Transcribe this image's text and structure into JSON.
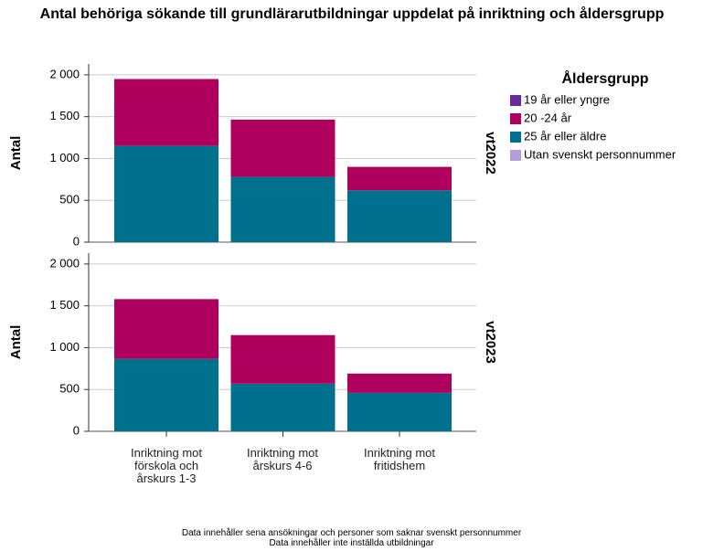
{
  "title": "Antal behöriga sökande till grundlärarutbildningar uppdelat på inriktning och åldersgrupp",
  "categories": [
    "Inriktning mot förskola och årskurs 1-3",
    "Inriktning mot årskurs 4-6",
    "Inriktning mot fritidshem"
  ],
  "legend": {
    "title": "Åldersgrupp",
    "series": [
      {
        "name": "19 år eller yngre",
        "color": "#6a2a9e"
      },
      {
        "name": "20 -24 år",
        "color": "#b0005e"
      },
      {
        "name": "25 år eller äldre",
        "color": "#00708f"
      },
      {
        "name": "Utan svenskt personnummer",
        "color": "#b39ddb"
      }
    ]
  },
  "chart_data": [
    {
      "type": "bar",
      "stacked": true,
      "label": "vt2022",
      "ylabel": "Antal",
      "ylim": [
        0,
        2130
      ],
      "yticks": [
        0,
        500,
        {
          "value": 1000,
          "label": "1 000"
        },
        {
          "value": 1500,
          "label": "1 500"
        },
        {
          "value": 2000,
          "label": "2 000"
        }
      ],
      "grid": true,
      "series": [
        {
          "values": [
            0,
            0,
            0
          ]
        },
        {
          "values": [
            800,
            685,
            280
          ]
        },
        {
          "values": [
            1150,
            780,
            620
          ]
        },
        {
          "values": [
            0,
            0,
            0
          ]
        }
      ]
    },
    {
      "type": "bar",
      "stacked": true,
      "label": "vt2023",
      "ylabel": "Antal",
      "ylim": [
        0,
        2130
      ],
      "yticks": [
        0,
        500,
        {
          "value": 1000,
          "label": "1 000"
        },
        {
          "value": 1500,
          "label": "1 500"
        },
        {
          "value": 2000,
          "label": "2 000"
        }
      ],
      "grid": true,
      "series": [
        {
          "values": [
            0,
            0,
            0
          ]
        },
        {
          "values": [
            715,
            580,
            230
          ]
        },
        {
          "values": [
            865,
            570,
            460
          ]
        },
        {
          "values": [
            0,
            0,
            0
          ]
        }
      ]
    }
  ],
  "notes": [
    "Data innehåller sena ansökningar och personer som saknar svenskt personnummer",
    "Data innehåller inte inställda utbildningar"
  ]
}
